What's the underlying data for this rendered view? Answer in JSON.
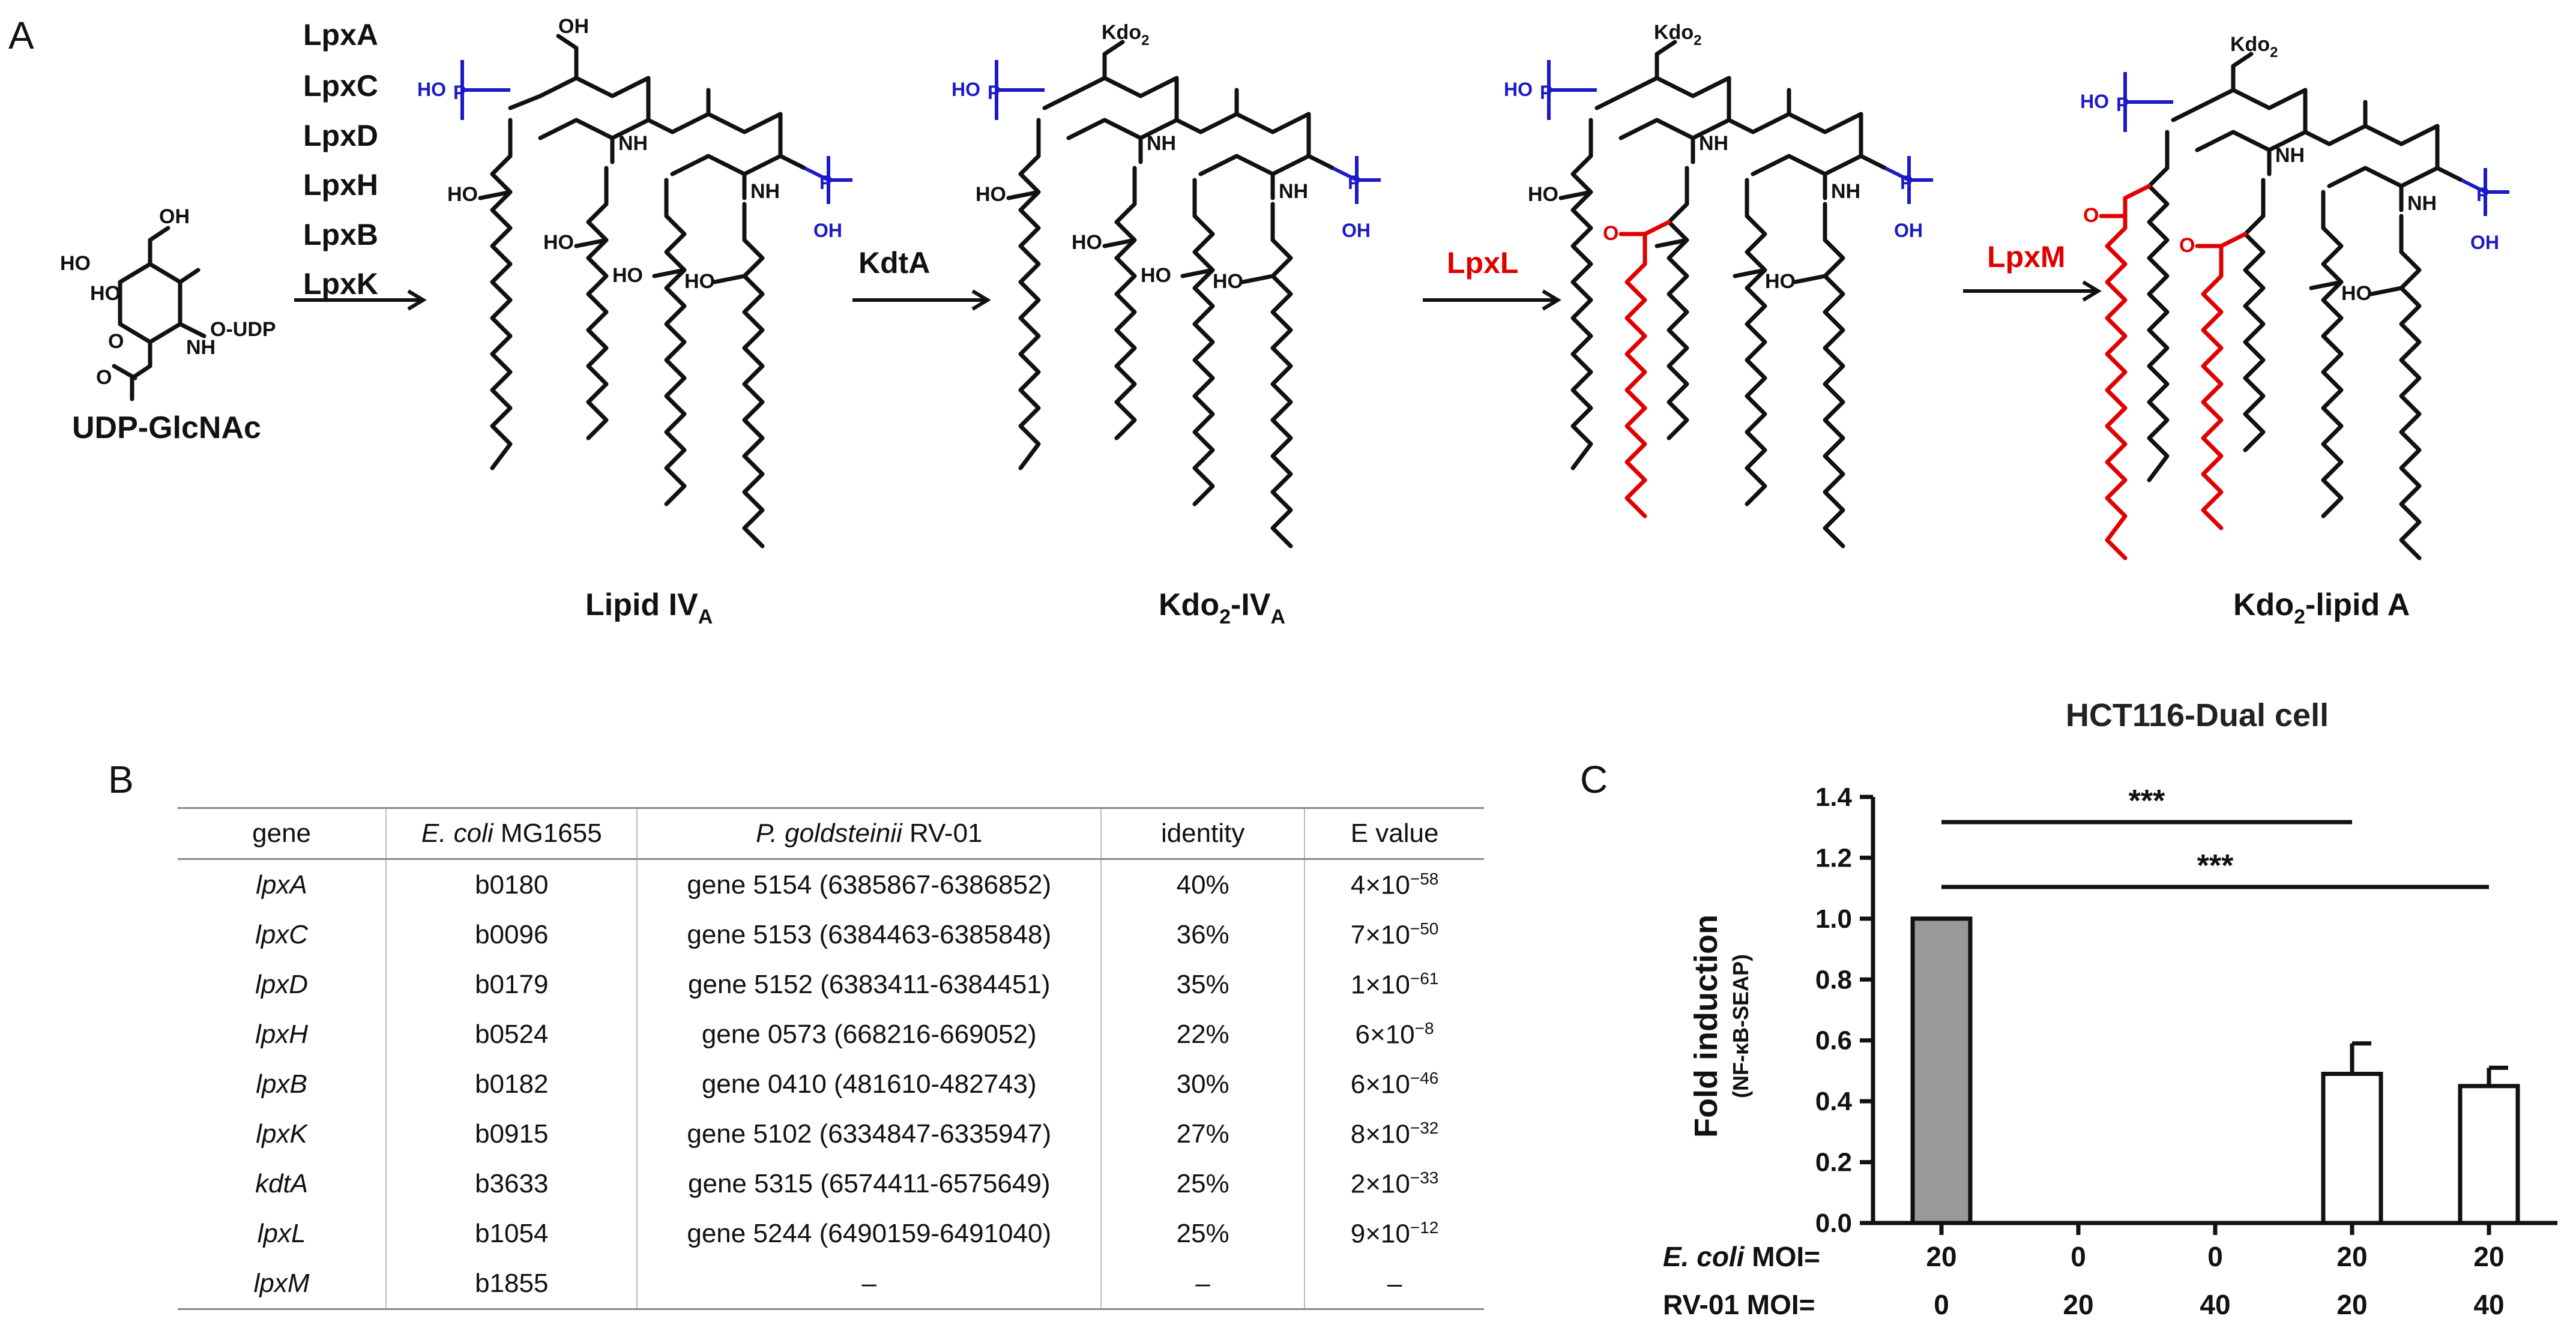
{
  "panels": {
    "a": "A",
    "b": "B",
    "c": "C"
  },
  "scheme": {
    "start_compound": "UDP-GlcNAc",
    "start_atoms": {
      "oh1": "OH",
      "ho1": "HO",
      "ho2": "HO",
      "nh": "NH",
      "o_udp": "O-UDP",
      "o_ac": "O",
      "o_ring": "O"
    },
    "first_enzymes": [
      "LpxA",
      "LpxC",
      "LpxD",
      "LpxH",
      "LpxB",
      "LpxK"
    ],
    "step2_enzyme": "KdtA",
    "step3_enzyme": "LpxL",
    "step4_enzyme": "LpxM",
    "compounds": [
      {
        "name": "Lipid IV",
        "sub": "A",
        "head": "OH"
      },
      {
        "name": "Kdo",
        "sub2": "2",
        "suffix": "-IV",
        "sub": "A",
        "head": "Kdo",
        "head_sub": "2"
      },
      {
        "name": "Kdo",
        "sub2": "2",
        "suffix": "-lipid A",
        "head": "Kdo",
        "head_sub": "2"
      }
    ],
    "atoms": {
      "ho": "HO",
      "oh": "OH",
      "o": "O",
      "p": "P",
      "o_minus": "O",
      "nh": "NH",
      "minus": "−"
    },
    "colors": {
      "phosphate": "#1a1ac8",
      "added_chain": "#e00000",
      "bond": "#111111"
    }
  },
  "table": {
    "headers": {
      "gene": "gene",
      "ecoli_italic": "E. coli",
      "ecoli_rest": " MG1655",
      "pg_italic": "P. goldsteinii",
      "pg_rest": " RV-01",
      "identity": "identity",
      "evalue": "E value"
    },
    "rows": [
      {
        "gene": "lpxA",
        "ecoli": "b0180",
        "pg": "gene 5154 (6385867-6386852)",
        "identity": "40%",
        "mant": "4×10",
        "exp": "−58"
      },
      {
        "gene": "lpxC",
        "ecoli": "b0096",
        "pg": "gene 5153 (6384463-6385848)",
        "identity": "36%",
        "mant": "7×10",
        "exp": "−50"
      },
      {
        "gene": "lpxD",
        "ecoli": "b0179",
        "pg": "gene 5152 (6383411-6384451)",
        "identity": "35%",
        "mant": "1×10",
        "exp": "−61"
      },
      {
        "gene": "lpxH",
        "ecoli": "b0524",
        "pg": "gene 0573 (668216-669052)",
        "identity": "22%",
        "mant": "6×10",
        "exp": "−8"
      },
      {
        "gene": "lpxB",
        "ecoli": "b0182",
        "pg": "gene 0410 (481610-482743)",
        "identity": "30%",
        "mant": "6×10",
        "exp": "−46"
      },
      {
        "gene": "lpxK",
        "ecoli": "b0915",
        "pg": "gene 5102 (6334847-6335947)",
        "identity": "27%",
        "mant": "8×10",
        "exp": "−32"
      },
      {
        "gene": "kdtA",
        "ecoli": "b3633",
        "pg": "gene 5315 (6574411-6575649)",
        "identity": "25%",
        "mant": "2×10",
        "exp": "−33"
      },
      {
        "gene": "lpxL",
        "ecoli": "b1054",
        "pg": "gene 5244 (6490159-6491040)",
        "identity": "25%",
        "mant": "9×10",
        "exp": "−12"
      },
      {
        "gene": "lpxM",
        "ecoli": "b1855",
        "pg": "–",
        "identity": "–",
        "mant": "–",
        "exp": ""
      }
    ]
  },
  "chart_data": {
    "type": "bar",
    "title": "HCT116-Dual cell",
    "ylabel": "Fold induction",
    "ylabel_sub": "(NF-κB-SEAP)",
    "ylim": [
      0.0,
      1.4
    ],
    "yticks": [
      "0.0",
      "0.2",
      "0.4",
      "0.6",
      "0.8",
      "1.0",
      "1.2",
      "1.4"
    ],
    "ytick_values": [
      0,
      0.2,
      0.4,
      0.6,
      0.8,
      1.0,
      1.2,
      1.4
    ],
    "row1_label_italic": "E. coli",
    "row1_label_rest": " MOI=",
    "row2_label": "RV-01 MOI=",
    "ecoli_moi": [
      "20",
      "0",
      "0",
      "20",
      "20"
    ],
    "rv01_moi": [
      "0",
      "20",
      "40",
      "20",
      "40"
    ],
    "values": [
      1.0,
      0.0,
      0.0,
      0.49,
      0.45
    ],
    "errors": [
      0.0,
      0.0,
      0.0,
      0.1,
      0.06
    ],
    "bar_colors": [
      "#999999",
      "#ffffff",
      "#ffffff",
      "#ffffff",
      "#ffffff"
    ],
    "significance": [
      {
        "from": 0,
        "to": 3,
        "label": "***"
      },
      {
        "from": 0,
        "to": 4,
        "label": "***"
      }
    ]
  }
}
